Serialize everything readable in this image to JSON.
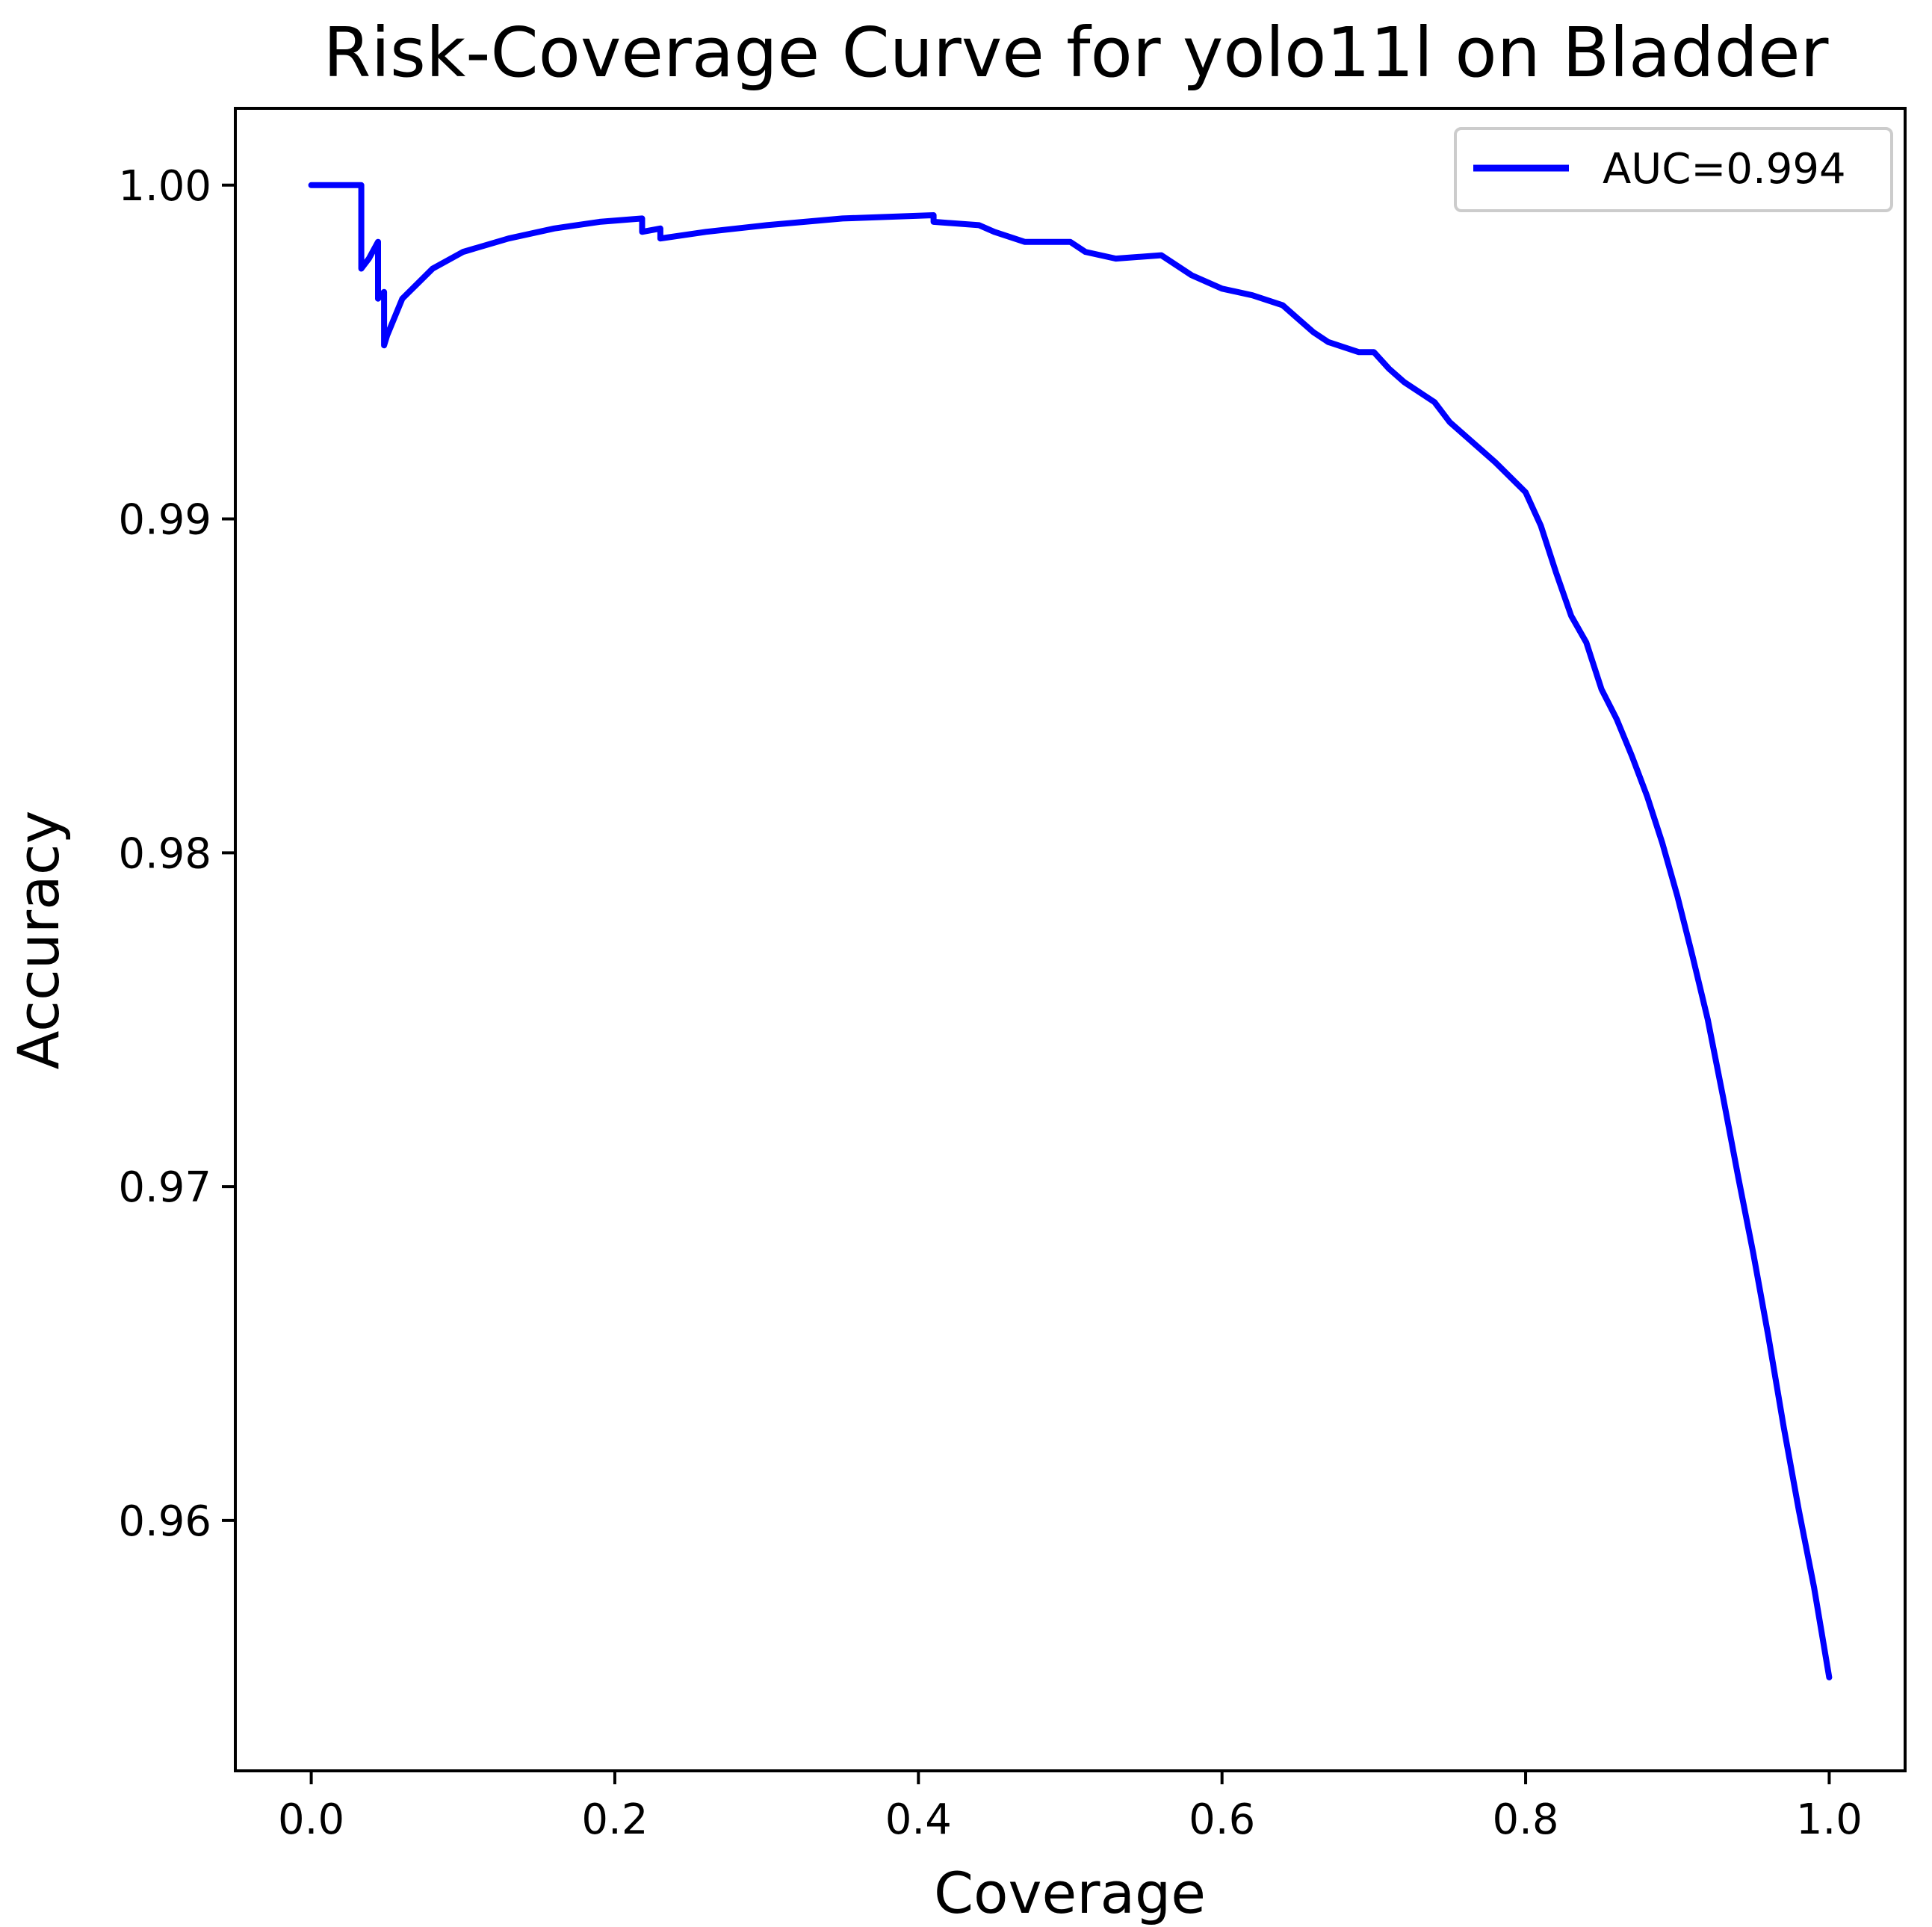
{
  "chart_data": {
    "type": "line",
    "title": "Risk-Coverage Curve for yolo11l on Bladder",
    "xlabel": "Coverage",
    "ylabel": "Accuracy",
    "xlim": [
      -0.05,
      1.05
    ],
    "ylim": [
      0.9525,
      1.0023
    ],
    "x_ticks": [
      0.0,
      0.2,
      0.4,
      0.6,
      0.8,
      1.0
    ],
    "x_tick_labels": [
      "0.0",
      "0.2",
      "0.4",
      "0.6",
      "0.8",
      "1.0"
    ],
    "y_ticks": [
      0.96,
      0.97,
      0.98,
      0.99,
      1.0
    ],
    "y_tick_labels": [
      "0.96",
      "0.97",
      "0.98",
      "0.99",
      "1.00"
    ],
    "grid": false,
    "legend_position": "top-right",
    "series": [
      {
        "name": "AUC=0.994",
        "color": "#0000ff",
        "x": [
          0.0,
          0.033,
          0.033,
          0.038,
          0.044,
          0.044,
          0.048,
          0.048,
          0.05,
          0.06,
          0.08,
          0.1,
          0.13,
          0.16,
          0.19,
          0.218,
          0.218,
          0.23,
          0.23,
          0.26,
          0.3,
          0.35,
          0.41,
          0.41,
          0.44,
          0.45,
          0.47,
          0.5,
          0.51,
          0.53,
          0.56,
          0.57,
          0.58,
          0.6,
          0.62,
          0.64,
          0.65,
          0.66,
          0.67,
          0.69,
          0.7,
          0.71,
          0.72,
          0.74,
          0.75,
          0.76,
          0.78,
          0.8,
          0.81,
          0.82,
          0.83,
          0.84,
          0.85,
          0.86,
          0.87,
          0.88,
          0.89,
          0.9,
          0.91,
          0.92,
          0.93,
          0.94,
          0.95,
          0.96,
          0.97,
          0.98,
          0.99,
          1.0
        ],
        "y": [
          1.0,
          1.0,
          0.9975,
          0.9978,
          0.9983,
          0.9966,
          0.9968,
          0.9952,
          0.9955,
          0.9966,
          0.9975,
          0.998,
          0.9984,
          0.9987,
          0.9989,
          0.999,
          0.9986,
          0.9987,
          0.9984,
          0.9986,
          0.9988,
          0.999,
          0.9991,
          0.9989,
          0.9988,
          0.9986,
          0.9983,
          0.9983,
          0.998,
          0.9978,
          0.9979,
          0.9976,
          0.9973,
          0.9969,
          0.9967,
          0.9964,
          0.996,
          0.9956,
          0.9953,
          0.995,
          0.995,
          0.9945,
          0.9941,
          0.9935,
          0.9929,
          0.9925,
          0.9917,
          0.9908,
          0.9898,
          0.9884,
          0.9871,
          0.9863,
          0.9849,
          0.984,
          0.9829,
          0.9817,
          0.9803,
          0.9787,
          0.9769,
          0.975,
          0.9727,
          0.9703,
          0.968,
          0.9655,
          0.9628,
          0.9603,
          0.958,
          0.9553
        ]
      }
    ]
  }
}
